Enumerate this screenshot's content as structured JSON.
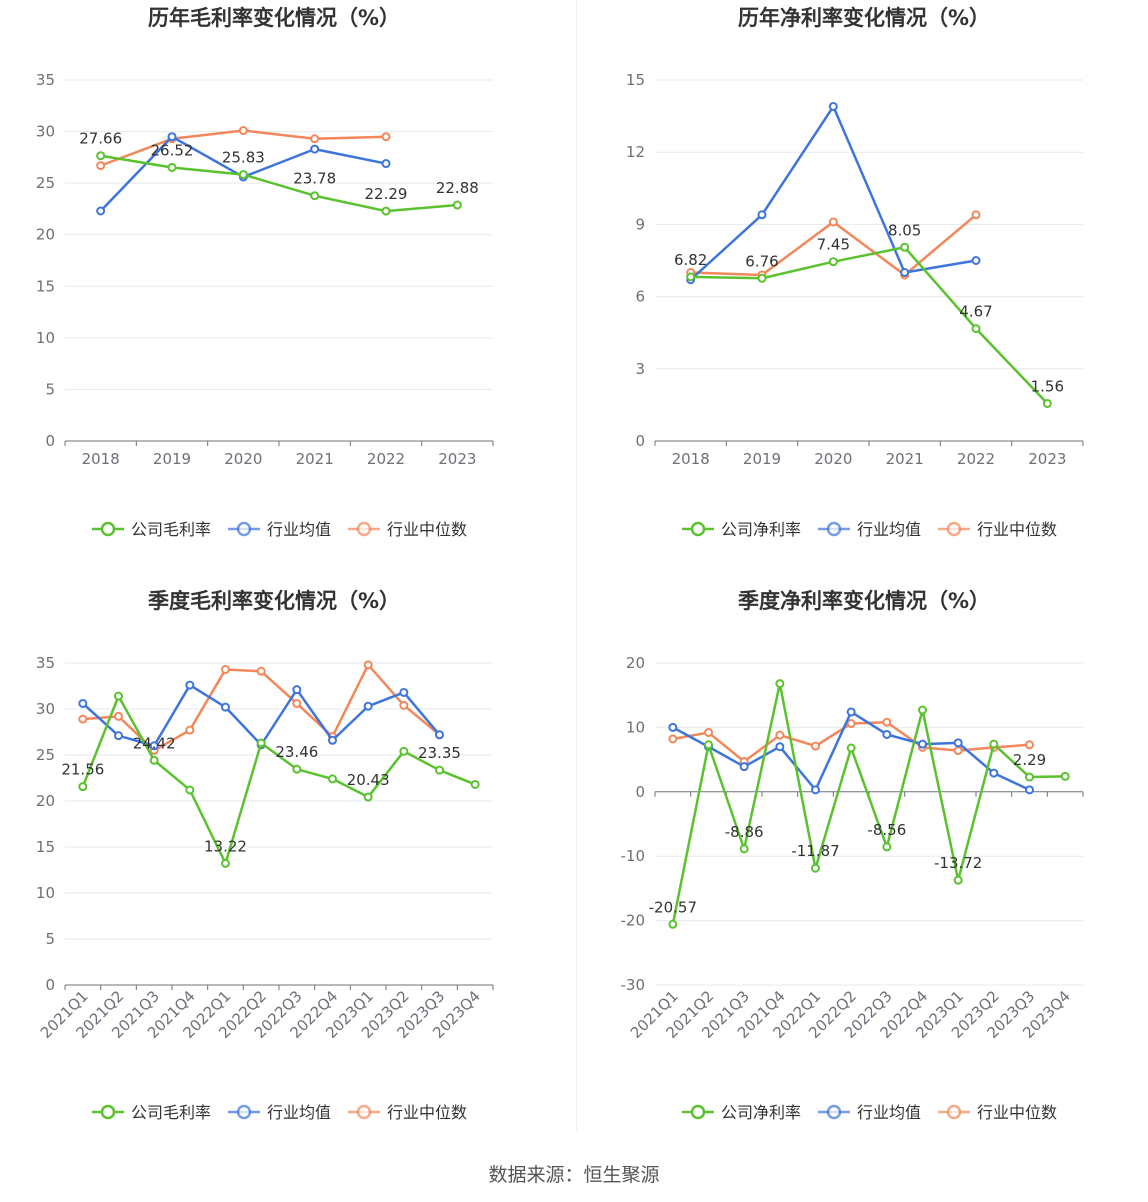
{
  "source": "数据来源：恒生聚源",
  "colors": {
    "company": "#5ac22e",
    "avg": "#3e75dc",
    "median": "#f4875a"
  },
  "charts": [
    {
      "id": "annual-gross",
      "title": "历年毛利率变化情况（%）",
      "legend": [
        "公司毛利率",
        "行业均值",
        "行业中位数"
      ],
      "ymin": 0,
      "ymax": 35,
      "yticks": [
        0,
        5,
        10,
        15,
        20,
        25,
        30,
        35
      ],
      "rotate": false,
      "categories": [
        "2018",
        "2019",
        "2020",
        "2021",
        "2022",
        "2023"
      ],
      "company": [
        27.66,
        26.52,
        25.83,
        23.78,
        22.29,
        22.88
      ],
      "avg": [
        22.3,
        29.5,
        25.6,
        28.3,
        26.9,
        null
      ],
      "median": [
        26.7,
        29.3,
        30.1,
        29.3,
        29.5,
        null
      ],
      "labels": [
        "27.66",
        "26.52",
        "25.83",
        "23.78",
        "22.29",
        "22.88"
      ],
      "labelIdx": [
        0,
        1,
        2,
        3,
        4,
        5
      ]
    },
    {
      "id": "annual-net",
      "title": "历年净利率变化情况（%）",
      "legend": [
        "公司净利率",
        "行业均值",
        "行业中位数"
      ],
      "ymin": 0,
      "ymax": 15,
      "yticks": [
        0,
        3,
        6,
        9,
        12,
        15
      ],
      "rotate": false,
      "categories": [
        "2018",
        "2019",
        "2020",
        "2021",
        "2022",
        "2023"
      ],
      "company": [
        6.82,
        6.76,
        7.45,
        8.05,
        4.67,
        1.56
      ],
      "avg": [
        6.7,
        9.4,
        13.9,
        7.0,
        7.5,
        null
      ],
      "median": [
        7.0,
        6.9,
        9.1,
        6.9,
        9.4,
        null
      ],
      "labels": [
        "6.82",
        "6.76",
        "7.45",
        "8.05",
        "4.67",
        "1.56"
      ],
      "labelIdx": [
        0,
        1,
        2,
        3,
        4,
        5
      ]
    },
    {
      "id": "quarter-gross",
      "title": "季度毛利率变化情况（%）",
      "legend": [
        "公司毛利率",
        "行业均值",
        "行业中位数"
      ],
      "ymin": 0,
      "ymax": 35,
      "yticks": [
        0,
        5,
        10,
        15,
        20,
        25,
        30,
        35
      ],
      "rotate": true,
      "categories": [
        "2021Q1",
        "2021Q2",
        "2021Q3",
        "2021Q4",
        "2022Q1",
        "2022Q2",
        "2022Q3",
        "2022Q4",
        "2023Q1",
        "2023Q2",
        "2023Q3",
        "2023Q4"
      ],
      "company": [
        21.56,
        31.4,
        24.42,
        21.2,
        13.22,
        26.3,
        23.46,
        22.4,
        20.43,
        25.4,
        23.35,
        21.8
      ],
      "avg": [
        30.6,
        27.1,
        26.0,
        32.6,
        30.2,
        26.1,
        32.1,
        26.6,
        30.3,
        31.8,
        27.2,
        null
      ],
      "median": [
        28.9,
        29.2,
        25.5,
        27.7,
        34.3,
        34.1,
        30.6,
        27.0,
        34.8,
        30.4,
        27.2,
        null
      ],
      "labels": [
        "21.56",
        "24.42",
        "13.22",
        "23.46",
        "20.43",
        "23.35"
      ],
      "labelIdx": [
        0,
        2,
        4,
        6,
        8,
        10
      ]
    },
    {
      "id": "quarter-net",
      "title": "季度净利率变化情况（%）",
      "legend": [
        "公司净利率",
        "行业均值",
        "行业中位数"
      ],
      "ymin": -30,
      "ymax": 20,
      "yticks": [
        -30,
        -20,
        -10,
        0,
        10,
        20
      ],
      "rotate": true,
      "categories": [
        "2021Q1",
        "2021Q2",
        "2021Q3",
        "2021Q4",
        "2022Q1",
        "2022Q2",
        "2022Q3",
        "2022Q4",
        "2023Q1",
        "2023Q2",
        "2023Q3",
        "2023Q4"
      ],
      "company": [
        -20.57,
        7.3,
        -8.86,
        16.8,
        -11.87,
        6.8,
        -8.56,
        12.7,
        -13.72,
        7.4,
        2.29,
        2.4
      ],
      "avg": [
        10.0,
        7.0,
        3.9,
        7.0,
        0.3,
        12.4,
        8.9,
        7.4,
        7.6,
        2.9,
        0.3,
        null
      ],
      "median": [
        8.2,
        9.2,
        4.7,
        8.8,
        7.1,
        10.6,
        10.8,
        6.9,
        6.4,
        6.9,
        7.3,
        null
      ],
      "labels": [
        "-20.57",
        "-8.86",
        "-11.87",
        "-8.56",
        "-13.72",
        "2.29"
      ],
      "labelIdx": [
        0,
        2,
        4,
        6,
        8,
        10
      ]
    }
  ],
  "chart_data": [
    {
      "type": "line",
      "title": "历年毛利率变化情况（%）",
      "categories": [
        "2018",
        "2019",
        "2020",
        "2021",
        "2022",
        "2023"
      ],
      "series": [
        {
          "name": "公司毛利率",
          "values": [
            27.66,
            26.52,
            25.83,
            23.78,
            22.29,
            22.88
          ]
        },
        {
          "name": "行业均值",
          "values": [
            22.3,
            29.5,
            25.6,
            28.3,
            26.9,
            null
          ]
        },
        {
          "name": "行业中位数",
          "values": [
            26.7,
            29.3,
            30.1,
            29.3,
            29.5,
            null
          ]
        }
      ],
      "ylim": [
        0,
        35
      ],
      "legend": "bottom"
    },
    {
      "type": "line",
      "title": "历年净利率变化情况（%）",
      "categories": [
        "2018",
        "2019",
        "2020",
        "2021",
        "2022",
        "2023"
      ],
      "series": [
        {
          "name": "公司净利率",
          "values": [
            6.82,
            6.76,
            7.45,
            8.05,
            4.67,
            1.56
          ]
        },
        {
          "name": "行业均值",
          "values": [
            6.7,
            9.4,
            13.9,
            7.0,
            7.5,
            null
          ]
        },
        {
          "name": "行业中位数",
          "values": [
            7.0,
            6.9,
            9.1,
            6.9,
            9.4,
            null
          ]
        }
      ],
      "ylim": [
        0,
        15
      ],
      "legend": "bottom"
    },
    {
      "type": "line",
      "title": "季度毛利率变化情况（%）",
      "categories": [
        "2021Q1",
        "2021Q2",
        "2021Q3",
        "2021Q4",
        "2022Q1",
        "2022Q2",
        "2022Q3",
        "2022Q4",
        "2023Q1",
        "2023Q2",
        "2023Q3",
        "2023Q4"
      ],
      "series": [
        {
          "name": "公司毛利率",
          "values": [
            21.56,
            31.4,
            24.42,
            21.2,
            13.22,
            26.3,
            23.46,
            22.4,
            20.43,
            25.4,
            23.35,
            21.8
          ]
        },
        {
          "name": "行业均值",
          "values": [
            30.6,
            27.1,
            26.0,
            32.6,
            30.2,
            26.1,
            32.1,
            26.6,
            30.3,
            31.8,
            27.2,
            null
          ]
        },
        {
          "name": "行业中位数",
          "values": [
            28.9,
            29.2,
            25.5,
            27.7,
            34.3,
            34.1,
            30.6,
            27.0,
            34.8,
            30.4,
            27.2,
            null
          ]
        }
      ],
      "ylim": [
        0,
        35
      ],
      "legend": "bottom"
    },
    {
      "type": "line",
      "title": "季度净利率变化情况（%）",
      "categories": [
        "2021Q1",
        "2021Q2",
        "2021Q3",
        "2021Q4",
        "2022Q1",
        "2022Q2",
        "2022Q3",
        "2022Q4",
        "2023Q1",
        "2023Q2",
        "2023Q3",
        "2023Q4"
      ],
      "series": [
        {
          "name": "公司净利率",
          "values": [
            -20.57,
            7.3,
            -8.86,
            16.8,
            -11.87,
            6.8,
            -8.56,
            12.7,
            -13.72,
            7.4,
            2.29,
            2.4
          ]
        },
        {
          "name": "行业均值",
          "values": [
            10.0,
            7.0,
            3.9,
            7.0,
            0.3,
            12.4,
            8.9,
            7.4,
            7.6,
            2.9,
            0.3,
            null
          ]
        },
        {
          "name": "行业中位数",
          "values": [
            8.2,
            9.2,
            4.7,
            8.8,
            7.1,
            10.6,
            10.8,
            6.9,
            6.4,
            6.9,
            7.3,
            null
          ]
        }
      ],
      "ylim": [
        -30,
        20
      ],
      "legend": "bottom"
    }
  ]
}
